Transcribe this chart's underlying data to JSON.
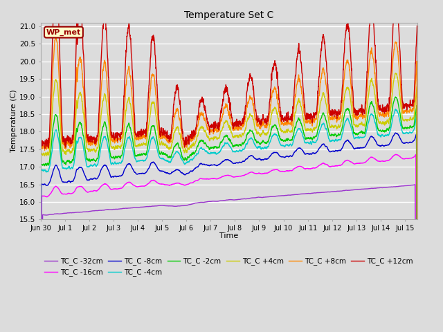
{
  "title": "Temperature Set C",
  "xlabel": "Time",
  "ylabel": "Temperature (C)",
  "ylim": [
    15.5,
    21.1
  ],
  "xlim_days": 15.5,
  "fig_width": 6.4,
  "fig_height": 4.8,
  "fig_dpi": 100,
  "background_color": "#dcdcdc",
  "grid_color": "#ffffff",
  "wp_met_label": "WP_met",
  "wp_met_bg": "#ffffcc",
  "wp_met_border": "#990000",
  "wp_met_text_color": "#990000",
  "x_tick_labels": [
    "Jun 30",
    "Jul 1",
    "Jul 2",
    "Jul 3",
    "Jul 4",
    "Jul 5",
    "Jul 6",
    "Jul 7",
    "Jul 8",
    "Jul 9",
    "Jul 10",
    "Jul 11",
    "Jul 12",
    "Jul 13",
    "Jul 14",
    "Jul 15"
  ],
  "series": [
    {
      "label": "TC_C -32cm",
      "color": "#9933cc",
      "lw": 1.0
    },
    {
      "label": "TC_C -16cm",
      "color": "#ff00ff",
      "lw": 1.0
    },
    {
      "label": "TC_C -8cm",
      "color": "#0000cc",
      "lw": 1.0
    },
    {
      "label": "TC_C -4cm",
      "color": "#00cccc",
      "lw": 1.0
    },
    {
      "label": "TC_C -2cm",
      "color": "#00cc00",
      "lw": 1.0
    },
    {
      "label": "TC_C +4cm",
      "color": "#cccc00",
      "lw": 1.0
    },
    {
      "label": "TC_C +8cm",
      "color": "#ff8800",
      "lw": 1.0
    },
    {
      "label": "TC_C +12cm",
      "color": "#cc0000",
      "lw": 1.0
    }
  ]
}
